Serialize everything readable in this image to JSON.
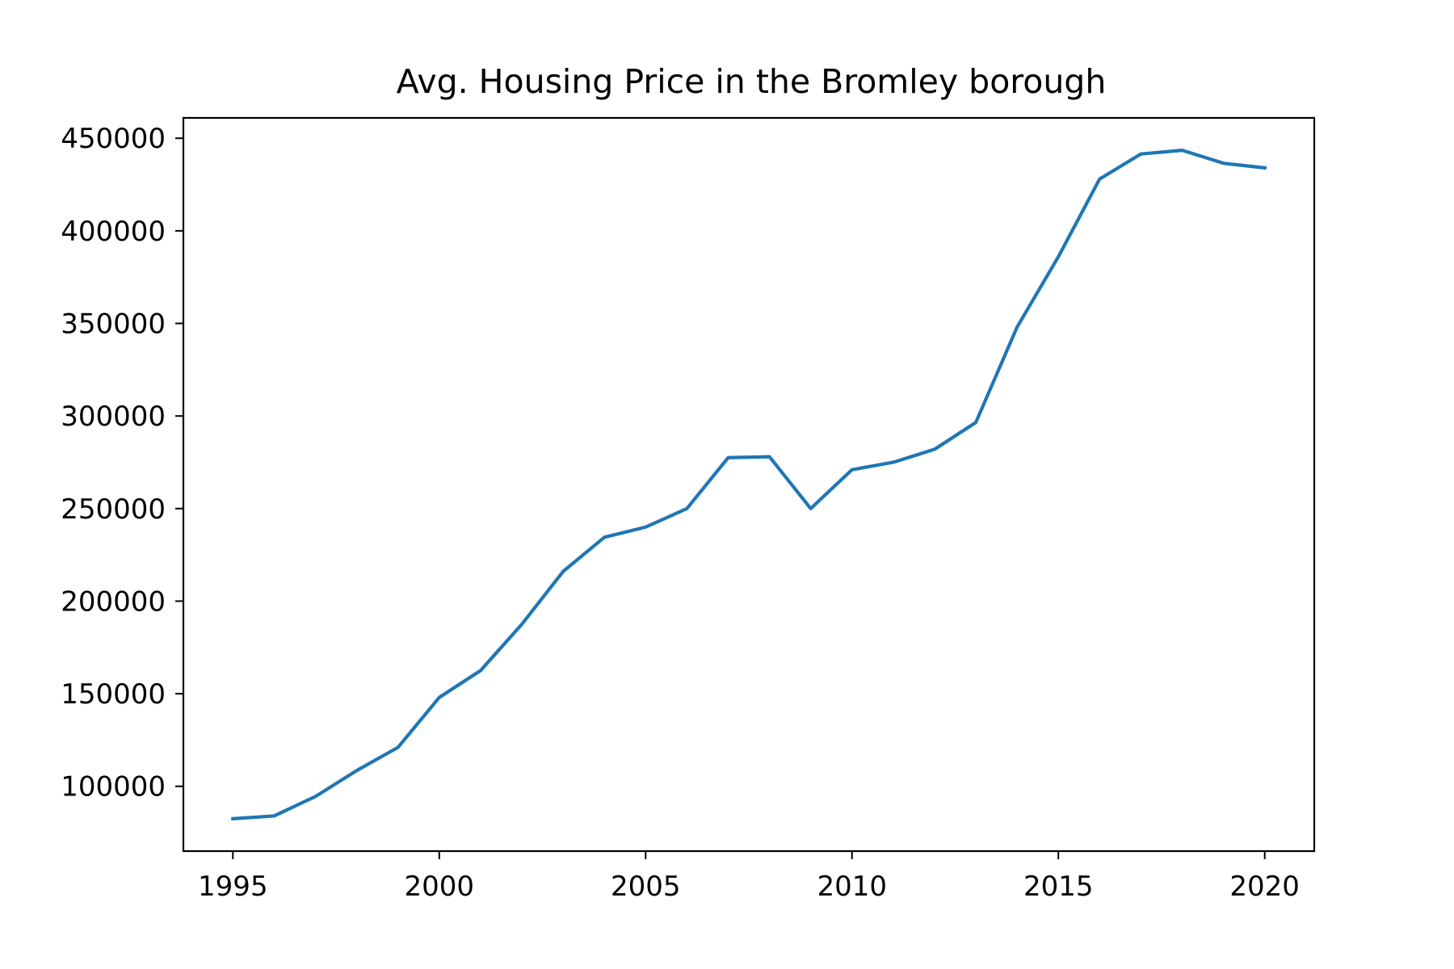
{
  "chart_data": {
    "type": "line",
    "title": "Avg. Housing Price in the Bromley borough",
    "xlabel": "",
    "ylabel": "",
    "xlim": [
      1993.8,
      2021.2
    ],
    "ylim": [
      65000,
      461000
    ],
    "grid": false,
    "legend": null,
    "x_ticks": [
      1995,
      2000,
      2005,
      2010,
      2015,
      2020
    ],
    "x_tick_labels": [
      "1995",
      "2000",
      "2005",
      "2010",
      "2015",
      "2020"
    ],
    "y_ticks": [
      100000,
      150000,
      200000,
      250000,
      300000,
      350000,
      400000,
      450000
    ],
    "y_tick_labels": [
      "100000",
      "150000",
      "200000",
      "250000",
      "300000",
      "350000",
      "400000",
      "450000"
    ],
    "series": [
      {
        "color": "#1f77b4",
        "x": [
          1995,
          1996,
          1997,
          1998,
          1999,
          2000,
          2001,
          2002,
          2003,
          2004,
          2005,
          2006,
          2007,
          2008,
          2009,
          2010,
          2011,
          2012,
          2013,
          2014,
          2015,
          2016,
          2017,
          2018,
          2019,
          2020
        ],
        "y": [
          82500,
          84000,
          94500,
          108500,
          121000,
          148000,
          162500,
          187500,
          216000,
          234500,
          240000,
          250000,
          277500,
          278000,
          250000,
          271000,
          275000,
          282000,
          296500,
          348000,
          386000,
          428000,
          441500,
          443500,
          436500,
          434000
        ]
      }
    ]
  }
}
